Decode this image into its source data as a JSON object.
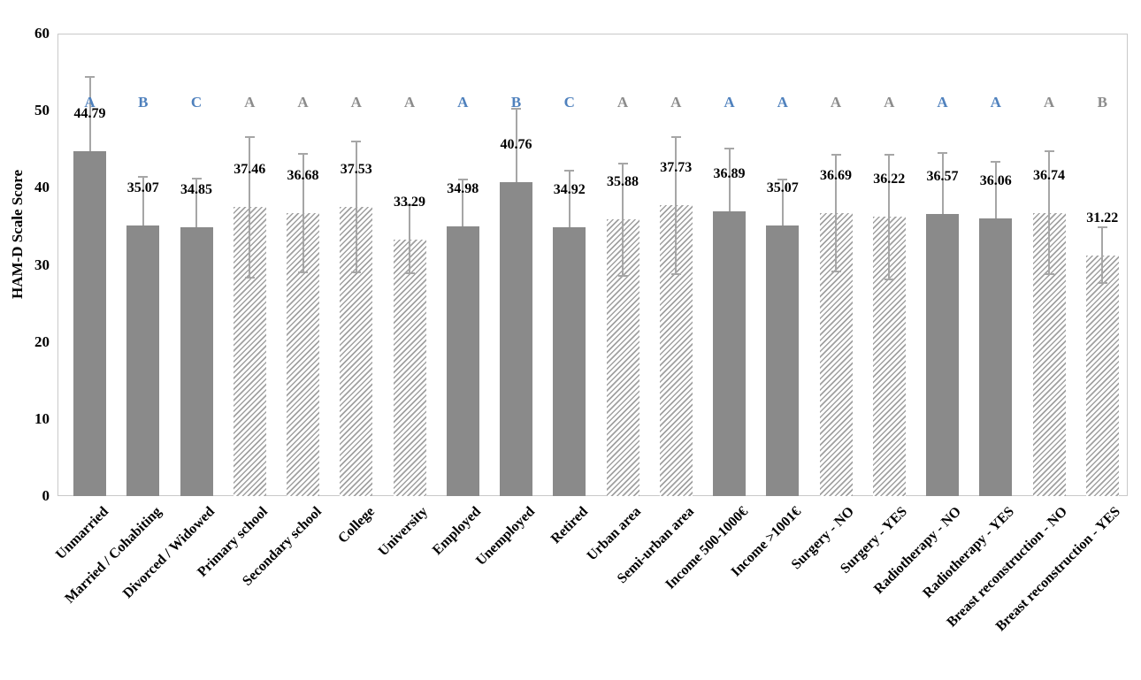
{
  "chart_data": {
    "type": "bar",
    "title": "",
    "xlabel": "",
    "ylabel": "HAM-D Scale Score",
    "ylim": [
      0,
      60
    ],
    "yticks": [
      0,
      10,
      20,
      30,
      40,
      50,
      60
    ],
    "grid": false,
    "legend": false,
    "bars": [
      {
        "category": "Unmarried",
        "value": 44.79,
        "sd": 9.6,
        "letter": "A",
        "letter_color": "blue",
        "fill": "solid"
      },
      {
        "category": "Married / Cohabiting",
        "value": 35.07,
        "sd": 6.4,
        "letter": "B",
        "letter_color": "blue",
        "fill": "solid"
      },
      {
        "category": "Divorced / Widowed",
        "value": 34.85,
        "sd": 6.3,
        "letter": "C",
        "letter_color": "blue",
        "fill": "solid"
      },
      {
        "category": "Primary school",
        "value": 37.46,
        "sd": 9.1,
        "letter": "A",
        "letter_color": "gray",
        "fill": "hatch"
      },
      {
        "category": "Secondary school",
        "value": 36.68,
        "sd": 7.7,
        "letter": "A",
        "letter_color": "gray",
        "fill": "hatch"
      },
      {
        "category": "College",
        "value": 37.53,
        "sd": 8.5,
        "letter": "A",
        "letter_color": "gray",
        "fill": "hatch"
      },
      {
        "category": "University",
        "value": 33.29,
        "sd": 4.4,
        "letter": "A",
        "letter_color": "gray",
        "fill": "hatch"
      },
      {
        "category": "Employed",
        "value": 34.98,
        "sd": 6.1,
        "letter": "A",
        "letter_color": "blue",
        "fill": "solid"
      },
      {
        "category": "Unemployed",
        "value": 40.76,
        "sd": 9.5,
        "letter": "B",
        "letter_color": "blue",
        "fill": "solid"
      },
      {
        "category": "Retired",
        "value": 34.92,
        "sd": 7.3,
        "letter": "C",
        "letter_color": "blue",
        "fill": "solid"
      },
      {
        "category": "Urban area",
        "value": 35.88,
        "sd": 7.3,
        "letter": "A",
        "letter_color": "gray",
        "fill": "hatch"
      },
      {
        "category": "Semi-urban area",
        "value": 37.73,
        "sd": 8.9,
        "letter": "A",
        "letter_color": "gray",
        "fill": "hatch"
      },
      {
        "category": "Income 500-1000€",
        "value": 36.89,
        "sd": 8.2,
        "letter": "A",
        "letter_color": "blue",
        "fill": "solid"
      },
      {
        "category": "Income >1001€",
        "value": 35.07,
        "sd": 6.0,
        "letter": "A",
        "letter_color": "blue",
        "fill": "solid"
      },
      {
        "category": "Surgery - NO",
        "value": 36.69,
        "sd": 7.6,
        "letter": "A",
        "letter_color": "gray",
        "fill": "hatch"
      },
      {
        "category": "Surgery - YES",
        "value": 36.22,
        "sd": 8.1,
        "letter": "A",
        "letter_color": "gray",
        "fill": "hatch"
      },
      {
        "category": "Radiotherapy - NO",
        "value": 36.57,
        "sd": 7.9,
        "letter": "A",
        "letter_color": "blue",
        "fill": "solid"
      },
      {
        "category": "Radiotherapy - YES",
        "value": 36.06,
        "sd": 7.3,
        "letter": "A",
        "letter_color": "blue",
        "fill": "solid"
      },
      {
        "category": "Breast reconstruction - NO",
        "value": 36.74,
        "sd": 8.0,
        "letter": "A",
        "letter_color": "gray",
        "fill": "hatch"
      },
      {
        "category": "Breast reconstruction - YES",
        "value": 31.22,
        "sd": 3.6,
        "letter": "B",
        "letter_color": "gray",
        "fill": "hatch"
      }
    ]
  },
  "colors": {
    "bar_solid": "#8a8a8a",
    "hatch_line": "#a0a0a0",
    "letter_blue": "#4f81bd",
    "letter_gray": "#8c8c8c",
    "error_bar": "#a6a6a6",
    "plot_border": "#c9c9c9",
    "text": "#000000"
  }
}
